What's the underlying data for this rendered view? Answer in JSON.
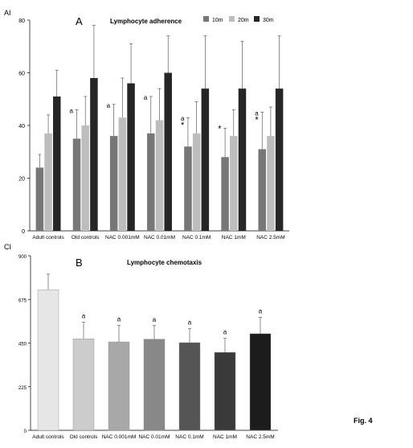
{
  "figure_label": "Fig. 4",
  "chart_data": [
    {
      "type": "bar",
      "panel": "A",
      "title": "Lymphocyte adherence",
      "ylabel": "AI",
      "xlabel": "",
      "ylim": [
        0,
        80
      ],
      "yticks": [
        0,
        20,
        40,
        60,
        80
      ],
      "grid": false,
      "legend_position": "top-right",
      "categories": [
        "Adult controls",
        "Old controls",
        "NAC 0.001mM",
        "NAC 0.01mM",
        "NAC 0.1mM",
        "NAC 1mM",
        "NAC 2.5mM"
      ],
      "series": [
        {
          "name": "10m",
          "color": "#777777",
          "values": [
            24,
            35,
            36,
            37,
            32,
            28,
            31
          ],
          "errors": [
            5,
            11,
            12,
            14,
            11,
            11,
            14
          ]
        },
        {
          "name": "20m",
          "color": "#bdbdbd",
          "values": [
            37,
            40,
            43,
            42,
            37,
            36,
            36
          ],
          "errors": [
            7,
            11,
            15,
            12,
            12,
            10,
            11
          ]
        },
        {
          "name": "30m",
          "color": "#262626",
          "values": [
            51,
            58,
            56,
            60,
            54,
            54,
            54
          ],
          "errors": [
            10,
            20,
            15,
            14,
            20,
            18,
            20
          ]
        }
      ],
      "annotations": [
        {
          "category": 1,
          "series": 0,
          "marks": [
            "a"
          ]
        },
        {
          "category": 2,
          "series": 0,
          "marks": [
            "a"
          ]
        },
        {
          "category": 3,
          "series": 0,
          "marks": [
            "a"
          ]
        },
        {
          "category": 4,
          "series": 0,
          "marks": [
            "a",
            "*"
          ]
        },
        {
          "category": 5,
          "series": 0,
          "marks": [
            "*"
          ]
        },
        {
          "category": 6,
          "series": 0,
          "marks": [
            "a",
            "*"
          ]
        }
      ]
    },
    {
      "type": "bar",
      "panel": "B",
      "title": "Lymphocyte chemotaxis",
      "ylabel": "CI",
      "xlabel": "",
      "ylim": [
        0,
        900
      ],
      "yticks": [
        0,
        225,
        450,
        675,
        900
      ],
      "grid": false,
      "categories": [
        "Adult controls",
        "Old controls",
        "NAC 0.001mM",
        "NAC 0.01mM",
        "NAC 0.1mM",
        "NAC 1mM",
        "NAC 2.5mM"
      ],
      "values": [
        725,
        472,
        456,
        470,
        452,
        402,
        498
      ],
      "errors": [
        80,
        85,
        85,
        70,
        72,
        72,
        85
      ],
      "colors": [
        "#e6e6e6",
        "#cccccc",
        "#a8a8a8",
        "#888888",
        "#555555",
        "#3a3a3a",
        "#1c1c1c"
      ],
      "annotations": [
        null,
        "a",
        "a",
        "a",
        "a",
        "a",
        "a"
      ]
    }
  ]
}
